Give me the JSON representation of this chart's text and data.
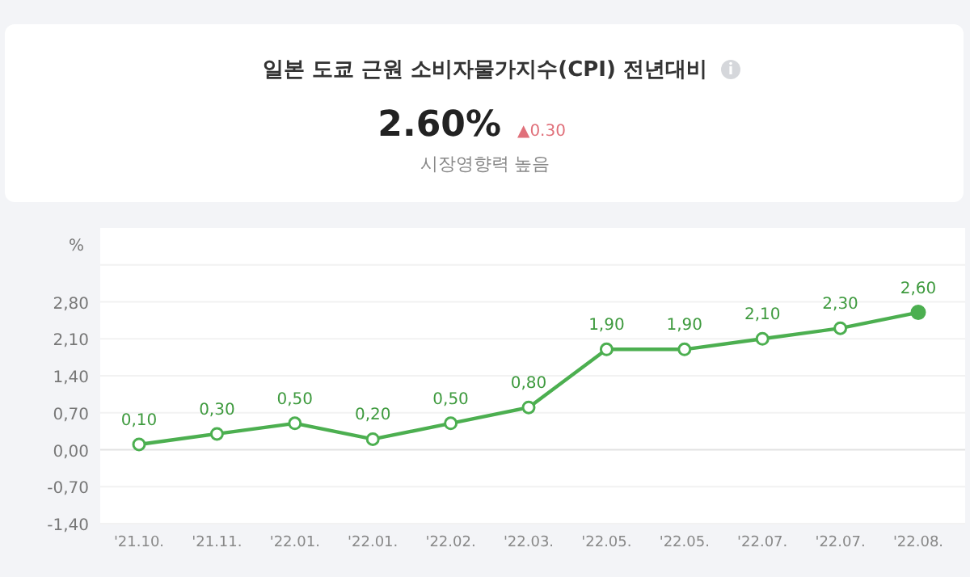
{
  "chart_data": {
    "type": "line",
    "title": "일본 도쿄 근원 소비자물가지수(CPI) 전년대비",
    "subtitle": "2.60%",
    "annotations": [
      "▲0.30",
      "시장영향력 높음"
    ],
    "ylabel": "%",
    "categories": [
      "'21.10.",
      "'21.11.",
      "'22.01.",
      "'22.01.",
      "'22.02.",
      "'22.03.",
      "'22.05.",
      "'22.05.",
      "'22.07.",
      "'22.07.",
      "'22.08."
    ],
    "series": [
      {
        "color": "#4caf50",
        "values": [
          0.1,
          0.3,
          0.5,
          0.2,
          0.5,
          0.8,
          1.9,
          1.9,
          2.1,
          2.3,
          2.6
        ],
        "value_labels": [
          "0,10",
          "0,30",
          "0,50",
          "0,20",
          "0,50",
          "0,80",
          "1,90",
          "1,90",
          "2,10",
          "2,30",
          "2,60"
        ]
      }
    ],
    "ylim": [
      -1.4,
      4.2
    ],
    "yticks": [
      {
        "value": -1.4,
        "label": "-1,40"
      },
      {
        "value": -0.7,
        "label": "-0,70"
      },
      {
        "value": 0,
        "label": "0,00"
      },
      {
        "value": 0.7,
        "label": "0,70"
      },
      {
        "value": 1.4,
        "label": "1,40"
      },
      {
        "value": 2.1,
        "label": "2,10"
      },
      {
        "value": 2.8,
        "label": "2,80"
      },
      {
        "value": 3.5,
        "label": null
      }
    ],
    "grid": "y",
    "marker": "circle",
    "line_style": "solid"
  }
}
